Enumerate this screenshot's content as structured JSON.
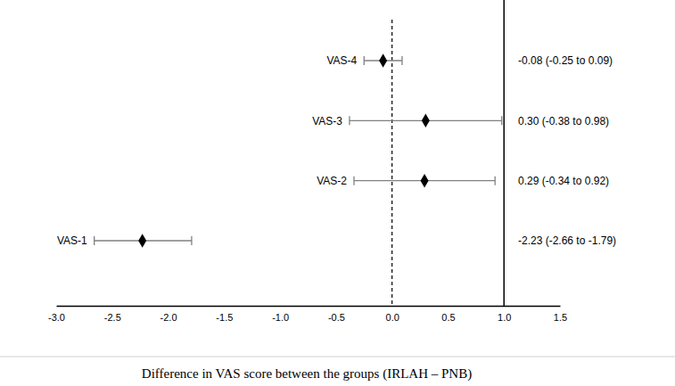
{
  "chart_data": {
    "type": "forest",
    "title": "Difference in VAS score between the groups (IRLAH – PNB)",
    "categories": [
      "VAS-4",
      "VAS-3",
      "VAS-2",
      "VAS-1"
    ],
    "values": [
      -0.08,
      0.3,
      0.29,
      -2.23
    ],
    "ci_lower": [
      -0.25,
      -0.38,
      -0.34,
      -2.66
    ],
    "ci_upper": [
      0.09,
      0.98,
      0.92,
      -1.79
    ],
    "value_labels": [
      "-0.08 (-0.25 to 0.09)",
      "0.30 (-0.38 to 0.98)",
      "0.29 (-0.34 to 0.92)",
      "-2.23 (-2.66 to -1.79)"
    ],
    "color": "#000000",
    "marker": "diamond",
    "xlim": [
      -3.0,
      1.5
    ],
    "xticks": [
      {
        "value": -3.0,
        "label": "-3.0"
      },
      {
        "value": -2.5,
        "label": "-2.5"
      },
      {
        "value": -2.0,
        "label": "-2.0"
      },
      {
        "value": -1.5,
        "label": "-1.5"
      },
      {
        "value": -1.0,
        "label": "-1.0"
      },
      {
        "value": -0.5,
        "label": "-0.5"
      },
      {
        "value": 0.0,
        "label": "0.0"
      },
      {
        "value": 0.5,
        "label": "0.5"
      },
      {
        "value": 1.0,
        "label": "1.0"
      },
      {
        "value": 1.5,
        "label": "1.5"
      }
    ],
    "reference_lines": [
      {
        "value": 0,
        "line_style": "dashed"
      },
      {
        "value": 1,
        "line_style": "solid"
      }
    ],
    "grid": false
  }
}
